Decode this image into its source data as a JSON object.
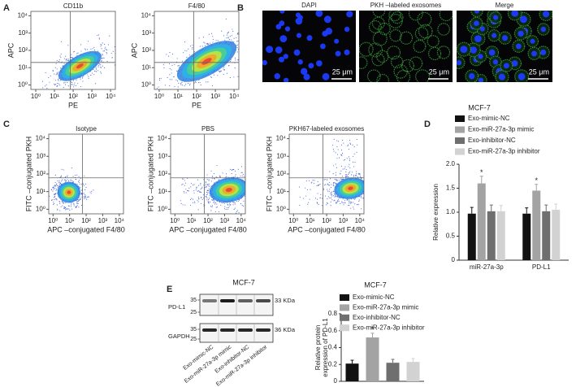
{
  "panel_labels": [
    "A",
    "B",
    "C",
    "D",
    "E"
  ],
  "chart_data": [
    {
      "type": "density",
      "title": "CD11b",
      "xlabel": "PE",
      "ylabel": "APC",
      "log": true,
      "xlim": [
        0.55,
        18000
      ],
      "ylim": [
        0.55,
        18000
      ],
      "xticks": [
        {
          "value": 1,
          "label": "10⁰"
        },
        {
          "value": 10,
          "label": "10¹"
        },
        {
          "value": 100,
          "label": "10²"
        },
        {
          "value": 1000,
          "label": "10³"
        },
        {
          "value": 10000,
          "label": "10⁴"
        }
      ],
      "yticks": [
        {
          "value": 1,
          "label": "10⁰"
        },
        {
          "value": 10,
          "label": "10¹"
        },
        {
          "value": 100,
          "label": "10²"
        },
        {
          "value": 1000,
          "label": "10³"
        },
        {
          "value": 10000,
          "label": "10⁴"
        }
      ],
      "gate": {
        "x": 70,
        "y": 20
      }
    },
    {
      "type": "density",
      "title": "F4/80",
      "xlabel": "PE",
      "ylabel": "APC",
      "log": true,
      "xlim": [
        0.55,
        18000
      ],
      "ylim": [
        0.55,
        18000
      ],
      "xticks": [
        {
          "value": 1,
          "label": "10⁰"
        },
        {
          "value": 10,
          "label": "10¹"
        },
        {
          "value": 100,
          "label": "10²"
        },
        {
          "value": 1000,
          "label": "10³"
        },
        {
          "value": 10000,
          "label": "10⁴"
        }
      ],
      "yticks": [
        {
          "value": 1,
          "label": "10⁰"
        },
        {
          "value": 10,
          "label": "10¹"
        },
        {
          "value": 100,
          "label": "10²"
        },
        {
          "value": 1000,
          "label": "10³"
        },
        {
          "value": 10000,
          "label": "10⁴"
        }
      ],
      "gate": {
        "x": 70,
        "y": 20
      }
    },
    {
      "type": "density",
      "title": "Isotype",
      "xlabel": "APC –conjugated F4/80",
      "ylabel": "FITC –conjugated PKH",
      "log": true,
      "xlim": [
        0.55,
        18000
      ],
      "ylim": [
        0.55,
        18000
      ],
      "xticks": [
        {
          "value": 1,
          "label": "10⁰"
        },
        {
          "value": 10,
          "label": "10¹"
        },
        {
          "value": 100,
          "label": "10²"
        },
        {
          "value": 1000,
          "label": "10³"
        },
        {
          "value": 10000,
          "label": "10⁴"
        }
      ],
      "yticks": [
        {
          "value": 1,
          "label": "10⁰"
        },
        {
          "value": 10,
          "label": "10¹"
        },
        {
          "value": 100,
          "label": "10²"
        },
        {
          "value": 1000,
          "label": "10³"
        },
        {
          "value": 10000,
          "label": "10⁴"
        }
      ],
      "gate": {
        "x": 60,
        "y": 60
      }
    },
    {
      "type": "density",
      "title": "PBS",
      "xlabel": "APC –conjugated F4/80",
      "ylabel": "FITC –conjugated PKH",
      "log": true,
      "xlim": [
        0.55,
        18000
      ],
      "ylim": [
        0.55,
        18000
      ],
      "xticks": [
        {
          "value": 1,
          "label": "10⁰"
        },
        {
          "value": 10,
          "label": "10¹"
        },
        {
          "value": 100,
          "label": "10²"
        },
        {
          "value": 1000,
          "label": "10³"
        },
        {
          "value": 10000,
          "label": "10⁴"
        }
      ],
      "yticks": [
        {
          "value": 1,
          "label": "10⁰"
        },
        {
          "value": 10,
          "label": "10¹"
        },
        {
          "value": 100,
          "label": "10²"
        },
        {
          "value": 1000,
          "label": "10³"
        },
        {
          "value": 10000,
          "label": "10⁴"
        }
      ],
      "gate": {
        "x": 60,
        "y": 60
      }
    },
    {
      "type": "density",
      "title": "PKH67-labeled exosomes",
      "xlabel": "APC –conjugated F4/80",
      "ylabel": "FITC –conjugated PKH",
      "log": true,
      "xlim": [
        0.55,
        18000
      ],
      "ylim": [
        0.55,
        18000
      ],
      "xticks": [
        {
          "value": 1,
          "label": "10⁰"
        },
        {
          "value": 10,
          "label": "10¹"
        },
        {
          "value": 100,
          "label": "10²"
        },
        {
          "value": 1000,
          "label": "10³"
        },
        {
          "value": 10000,
          "label": "10⁴"
        }
      ],
      "yticks": [
        {
          "value": 1,
          "label": "10⁰"
        },
        {
          "value": 10,
          "label": "10¹"
        },
        {
          "value": 100,
          "label": "10²"
        },
        {
          "value": 1000,
          "label": "10³"
        },
        {
          "value": 10000,
          "label": "10⁴"
        }
      ],
      "gate": {
        "x": 60,
        "y": 60
      }
    },
    {
      "type": "bar",
      "title": "MCF-7",
      "ylabel": "Relative expression",
      "categories": [
        "miR-27a-3p",
        "PD-L1"
      ],
      "series": [
        {
          "name": "Exo-mimic-NC",
          "color": "#111111",
          "values": [
            0.97,
            0.97
          ],
          "errors": [
            0.13,
            0.12
          ]
        },
        {
          "name": "Exo-miR-27a-3p mimic",
          "color": "#a3a3a3",
          "values": [
            1.6,
            1.45
          ],
          "errors": [
            0.15,
            0.13
          ]
        },
        {
          "name": "Exo-inhibitor-NC",
          "color": "#6f6f6f",
          "values": [
            1.02,
            1.02
          ],
          "errors": [
            0.13,
            0.13
          ]
        },
        {
          "name": "Exo-miR-27a-3p inhibitor",
          "color": "#d2d2d2",
          "values": [
            1.02,
            1.05
          ],
          "errors": [
            0.12,
            0.12
          ]
        }
      ],
      "significance": [
        "*",
        "*"
      ],
      "ylim": [
        0,
        2
      ],
      "yticks": [
        0,
        0.5,
        {
          "value": 1,
          "label": "1.0"
        },
        1.5,
        {
          "value": 2,
          "label": "2.0"
        }
      ]
    },
    {
      "type": "bar",
      "title": "MCF-7",
      "ylabel_lines": [
        "Relative protein",
        "expression of PD-L1"
      ],
      "series": [
        {
          "name": "Exo-mimic-NC",
          "color": "#111111",
          "values": [
            0.21
          ],
          "errors": [
            0.04
          ]
        },
        {
          "name": "Exo-miR-27a-3p mimic",
          "color": "#a3a3a3",
          "values": [
            0.52
          ],
          "errors": [
            0.05
          ]
        },
        {
          "name": "Exo-inhibitor-NC",
          "color": "#6f6f6f",
          "values": [
            0.22
          ],
          "errors": [
            0.04
          ]
        },
        {
          "name": "Exo-miR-27a-3p inhibitor",
          "color": "#d2d2d2",
          "values": [
            0.23
          ],
          "errors": [
            0.04
          ]
        }
      ],
      "significance": [
        "*"
      ],
      "ylim": [
        0,
        0.8
      ],
      "yticks": [
        0,
        0.2,
        0.4,
        0.6,
        0.8
      ]
    }
  ],
  "microscopy": {
    "images": [
      {
        "title": "DAPI",
        "scale_bar": "25 μm"
      },
      {
        "title": "PKH –labeled exosomes",
        "scale_bar": "25 μm"
      },
      {
        "title": "Merge",
        "scale_bar": "25 μm"
      }
    ]
  },
  "blot": {
    "title": "MCF-7",
    "rows": [
      {
        "label": "PD-L1",
        "size": "33 KDa",
        "markers": [
          35,
          25
        ]
      },
      {
        "label": "GAPDH",
        "size": "36 KDa",
        "markers": [
          35,
          25
        ]
      }
    ],
    "lanes": [
      "Exo-mimic-NC",
      "Exo-miR-27a-3p mimic",
      "Exo-inhibitor-NC",
      "Exo-miR-27a-3p inhibitor"
    ]
  }
}
